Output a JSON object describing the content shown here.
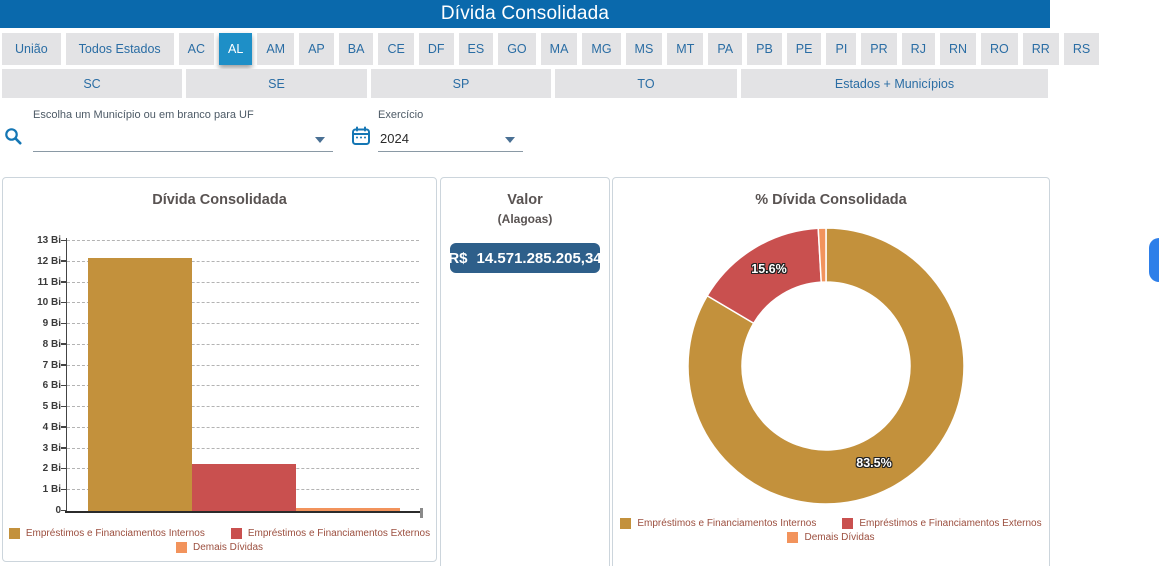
{
  "header": {
    "title": "Dívida Consolidada"
  },
  "nav": {
    "row1": [
      "União",
      "Todos Estados",
      "AC",
      "AL",
      "AM",
      "AP",
      "BA",
      "CE",
      "DF",
      "ES",
      "GO",
      "MA",
      "MG",
      "MS",
      "MT",
      "PA",
      "PB",
      "PE",
      "PI",
      "PR",
      "RJ",
      "RN",
      "RO",
      "RR",
      "RS"
    ],
    "selected": "AL",
    "row2": [
      "SC",
      "SE",
      "SP",
      "TO",
      "Estados + Municípios"
    ]
  },
  "filters": {
    "municipio_label": "Escolha um Município ou em branco para UF",
    "municipio_value": "",
    "exercicio_label": "Exercício",
    "exercicio_value": "2024"
  },
  "valor_panel": {
    "title": "Valor",
    "subtitle": "(Alagoas)",
    "currency": "R$",
    "amount": "14.571.285.205,34"
  },
  "legend": {
    "items": [
      {
        "label": "Empréstimos e Financiamentos Internos",
        "color": "#c3913c"
      },
      {
        "label": "Empréstimos e Financiamentos Externos",
        "color": "#c9504f"
      },
      {
        "label": "Demais Dívidas",
        "color": "#f2935c"
      }
    ]
  },
  "chart_data": [
    {
      "type": "bar",
      "title": "Dívida Consolidada",
      "categories": [
        "Empréstimos e Financiamentos Internos",
        "Empréstimos e Financiamentos Externos",
        "Demais Dívidas"
      ],
      "values_bi": [
        12.17,
        2.27,
        0.13
      ],
      "colors": [
        "#c3913c",
        "#c9504f",
        "#f2935c"
      ],
      "ylabel_ticks": [
        "0",
        "1 Bi",
        "2 Bi",
        "3 Bi",
        "4 Bi",
        "5 Bi",
        "6 Bi",
        "7 Bi",
        "8 Bi",
        "9 Bi",
        "10 Bi",
        "11 Bi",
        "12 Bi",
        "13 Bi"
      ],
      "ylim": [
        0,
        13.15
      ],
      "grid": "dashed-horizontal",
      "legend_position": "bottom"
    },
    {
      "type": "pie",
      "subtype": "donut",
      "title": "% Dívida Consolidada",
      "categories": [
        "Empréstimos e Financiamentos Internos",
        "Empréstimos e Financiamentos Externos",
        "Demais Dívidas"
      ],
      "values_pct": [
        83.5,
        15.6,
        0.9
      ],
      "slice_labels": [
        "83.5%",
        "15.6%",
        ""
      ],
      "colors": [
        "#c3913c",
        "#c9504f",
        "#f2935c"
      ],
      "legend_position": "bottom"
    }
  ],
  "colors": {
    "header_bg": "#0a69ac",
    "selected_nav_bg": "#1e8fc7",
    "nav_bg": "#e3e3e5",
    "nav_text": "#2a6da4",
    "value_box_bg": "#2e5f8a",
    "legend_text": "#9c4f3f",
    "float_btn": "#2e7fe9"
  }
}
